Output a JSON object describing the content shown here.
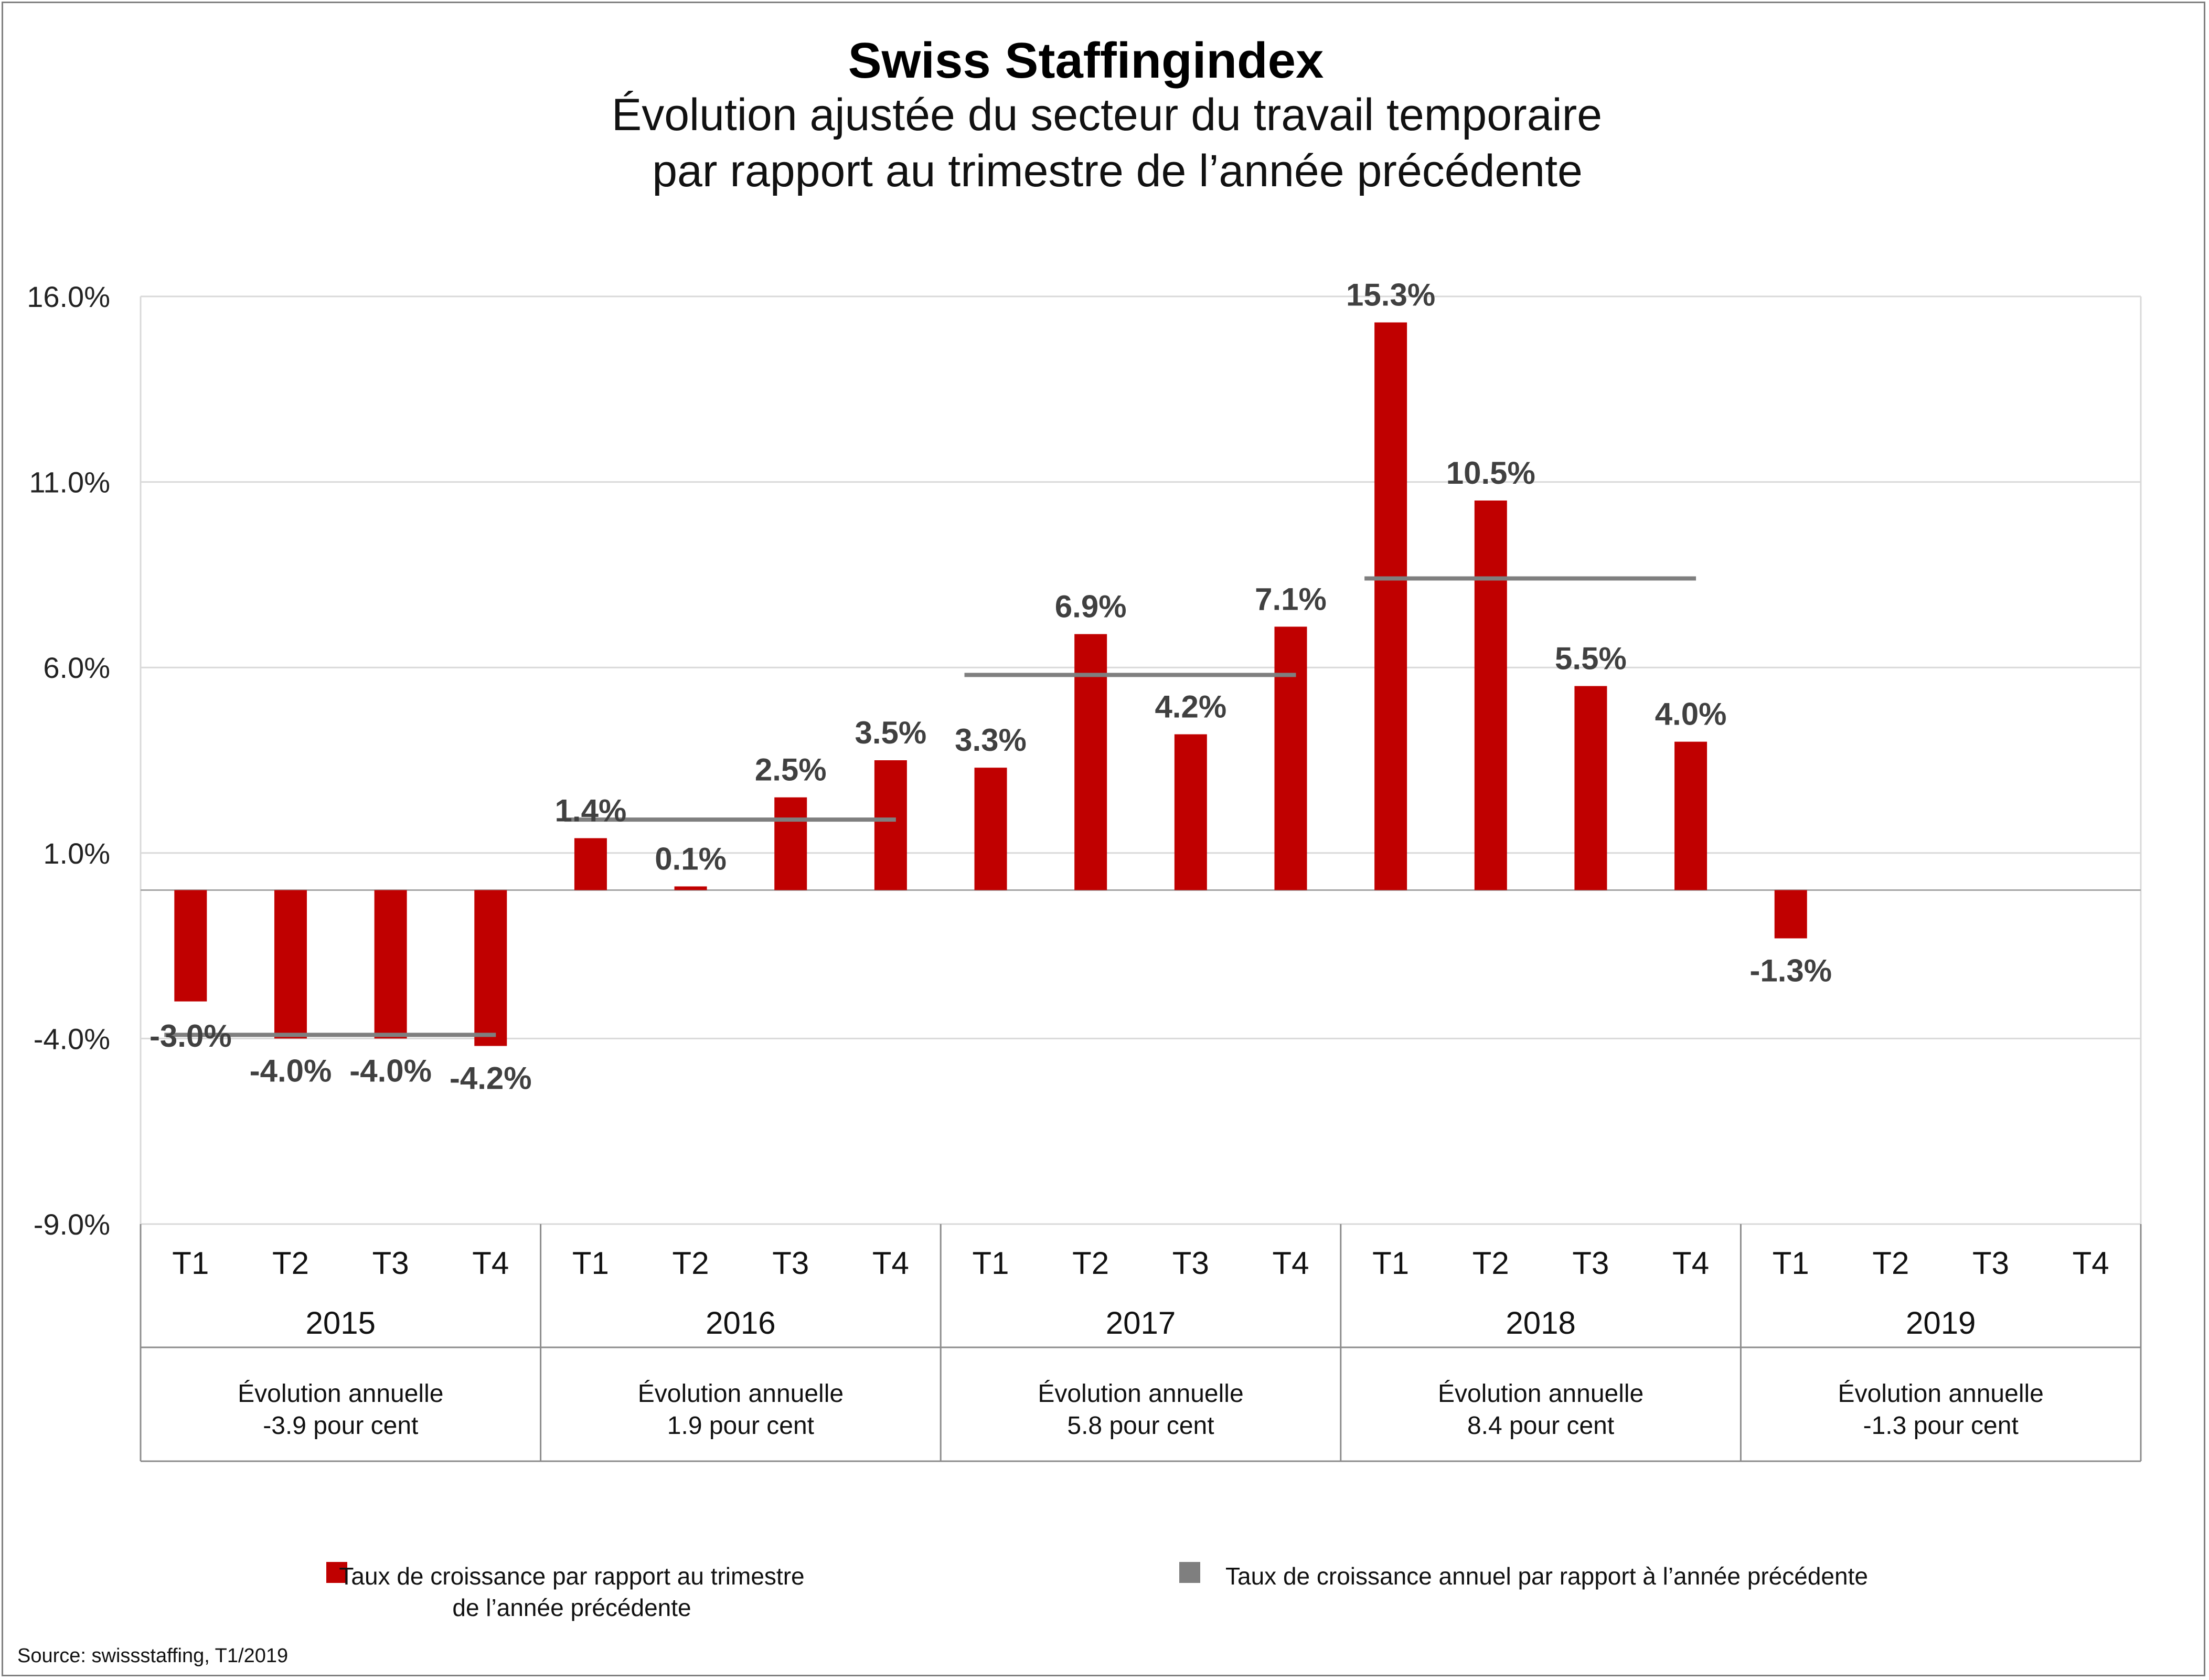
{
  "chart_data": {
    "type": "bar",
    "title": "Swiss Staffingindex",
    "subtitle_line1": "Évolution ajustée du secteur du travail temporaire",
    "subtitle_line2": "par rapport au trimestre de l’année précédente",
    "ylim": [
      -9.0,
      16.0
    ],
    "yticks": [
      "16.0%",
      "11.0%",
      "6.0%",
      "1.0%",
      "-4.0%",
      "-9.0%"
    ],
    "ytick_values": [
      16.0,
      11.0,
      6.0,
      1.0,
      -4.0,
      -9.0
    ],
    "grid": true,
    "quarters": [
      "T1",
      "T2",
      "T3",
      "T4"
    ],
    "years": [
      "2015",
      "2016",
      "2017",
      "2018",
      "2019"
    ],
    "series": [
      {
        "name": "Taux de croissance par rapport au trimestre de l’année précédente",
        "color": "#c00000",
        "values": [
          -3.0,
          -4.0,
          -4.0,
          -4.2,
          1.4,
          0.1,
          2.5,
          3.5,
          3.3,
          6.9,
          4.2,
          7.1,
          15.3,
          10.5,
          5.5,
          4.0,
          -1.3,
          null,
          null,
          null
        ],
        "labels": [
          "-3.0%",
          "-4.0%",
          "-4.0%",
          "-4.2%",
          "1.4%",
          "0.1%",
          "2.5%",
          "3.5%",
          "3.3%",
          "6.9%",
          "4.2%",
          "7.1%",
          "15.3%",
          "10.5%",
          "5.5%",
          "4.0%",
          "-1.3%",
          "",
          "",
          ""
        ]
      },
      {
        "name": "Taux de croissance annuel par rapport à l’année précédente",
        "color": "#7f7f7f",
        "values": [
          -3.9,
          1.9,
          5.8,
          8.4,
          -1.3
        ]
      }
    ],
    "annual_text": [
      {
        "line1": "Évolution annuelle",
        "line2": "-3.9 pour cent"
      },
      {
        "line1": "Évolution annuelle",
        "line2": "1.9 pour cent"
      },
      {
        "line1": "Évolution annuelle",
        "line2": "5.8 pour cent"
      },
      {
        "line1": "Évolution annuelle",
        "line2": "8.4 pour cent"
      },
      {
        "line1": "Évolution annuelle",
        "line2": "-1.3 pour cent"
      }
    ],
    "legend": {
      "item1_line1": "Taux de croissance par rapport au trimestre",
      "item1_line2": "de l’année précédente",
      "item2": "Taux de croissance annuel par rapport à l’année précédente"
    },
    "source": "Source: swissstaffing, T1/2019"
  }
}
